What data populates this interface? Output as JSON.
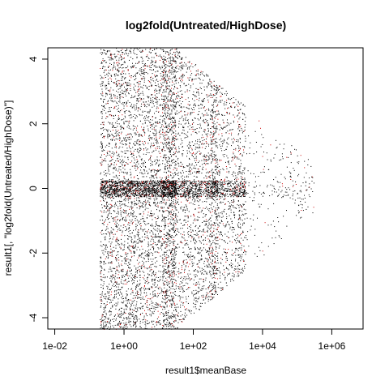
{
  "chart_data": {
    "type": "scatter",
    "title": "log2fold(Untreated/HighDose)",
    "xlabel": "result1$meanBase",
    "ylabel": "result1[, \"log2fold(Untreated/HighDose)\"]",
    "x_scale": "log10",
    "xlim": [
      0.0063,
      8000000
    ],
    "ylim": [
      -4.35,
      4.35
    ],
    "x_ticks": [
      {
        "value": 0.01,
        "label": "1e-02"
      },
      {
        "value": 1,
        "label": "1e+00"
      },
      {
        "value": 100,
        "label": "1e+02"
      },
      {
        "value": 10000,
        "label": "1e+04"
      },
      {
        "value": 1000000,
        "label": "1e+06"
      }
    ],
    "y_ticks": [
      {
        "value": -4,
        "label": "-4"
      },
      {
        "value": -2,
        "label": "-2"
      },
      {
        "value": 0,
        "label": "0"
      },
      {
        "value": 2,
        "label": "2"
      },
      {
        "value": 4,
        "label": "4"
      }
    ],
    "grid": false,
    "legend": "none",
    "point_colors": [
      "#000000",
      "#cc0000"
    ],
    "series": [
      {
        "x_range": [
          0.2,
          300000
        ],
        "y_range": [
          -4.35,
          4.35
        ],
        "x_density_peak": 1,
        "y_density_peak": 0
      }
    ]
  }
}
